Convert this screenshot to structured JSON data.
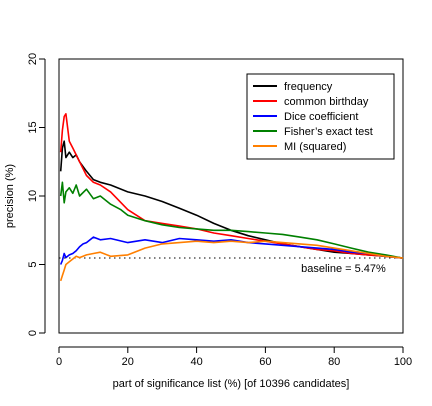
{
  "chart_data": {
    "type": "line",
    "title": "",
    "xlabel": "part of significance list (%) [of 10396 candidates]",
    "ylabel": "precision (%)",
    "xlim": [
      0,
      100
    ],
    "ylim": [
      0,
      20
    ],
    "xticks": [
      0,
      20,
      40,
      60,
      80,
      100
    ],
    "yticks": [
      0,
      5,
      10,
      15,
      20
    ],
    "grid": false,
    "legend_position": "top-right",
    "baseline": {
      "value": 5.47,
      "label": "baseline = 5.47%"
    },
    "series": [
      {
        "name": "frequency",
        "color": "#000000",
        "x": [
          0.5,
          1,
          1.5,
          2,
          3,
          4,
          5,
          6,
          8,
          10,
          12,
          15,
          20,
          25,
          30,
          35,
          40,
          45,
          50,
          55,
          60,
          65,
          70,
          75,
          80,
          85,
          90,
          95,
          100
        ],
        "y": [
          11.8,
          13.5,
          14.0,
          12.8,
          13.2,
          12.8,
          13.0,
          12.5,
          11.8,
          11.2,
          11.0,
          10.8,
          10.3,
          10.0,
          9.6,
          9.1,
          8.6,
          8.0,
          7.5,
          7.1,
          6.8,
          6.5,
          6.3,
          6.1,
          5.9,
          5.8,
          5.7,
          5.6,
          5.47
        ]
      },
      {
        "name": "common birthday",
        "color": "#ff0000",
        "x": [
          0.5,
          1,
          1.5,
          2,
          2.5,
          3,
          4,
          5,
          6,
          8,
          10,
          12,
          15,
          20,
          25,
          30,
          35,
          40,
          45,
          50,
          55,
          60,
          65,
          70,
          75,
          80,
          85,
          90,
          95,
          100
        ],
        "y": [
          13.2,
          14.8,
          15.8,
          16.0,
          15.0,
          14.0,
          13.5,
          13.0,
          12.5,
          11.5,
          11.0,
          10.8,
          10.3,
          9.0,
          8.2,
          8.0,
          7.8,
          7.6,
          7.3,
          7.1,
          6.9,
          6.7,
          6.5,
          6.3,
          6.1,
          6.0,
          5.8,
          5.7,
          5.6,
          5.47
        ]
      },
      {
        "name": "Dice coefficient",
        "color": "#0000ff",
        "x": [
          0.5,
          1,
          1.5,
          2,
          3,
          4,
          5,
          6,
          7,
          8,
          10,
          12,
          15,
          20,
          25,
          30,
          35,
          40,
          45,
          50,
          55,
          60,
          65,
          70,
          75,
          80,
          85,
          90,
          95,
          100
        ],
        "y": [
          5.0,
          5.3,
          5.8,
          5.5,
          5.7,
          5.8,
          6.0,
          6.3,
          6.5,
          6.6,
          7.0,
          6.8,
          6.9,
          6.6,
          6.8,
          6.6,
          6.9,
          6.8,
          6.7,
          6.8,
          6.6,
          6.5,
          6.4,
          6.3,
          6.2,
          6.1,
          5.9,
          5.8,
          5.6,
          5.47
        ]
      },
      {
        "name": "Fisher’s exact test",
        "color": "#008000",
        "x": [
          0.5,
          1,
          1.5,
          2,
          3,
          4,
          5,
          6,
          8,
          10,
          12,
          15,
          18,
          20,
          25,
          30,
          35,
          40,
          45,
          50,
          55,
          60,
          65,
          70,
          75,
          80,
          85,
          90,
          95,
          100
        ],
        "y": [
          10.0,
          11.0,
          9.5,
          10.3,
          10.6,
          10.2,
          10.8,
          10.0,
          10.5,
          9.8,
          10.0,
          9.4,
          9.0,
          8.6,
          8.2,
          7.9,
          7.7,
          7.6,
          7.5,
          7.5,
          7.4,
          7.3,
          7.2,
          7.0,
          6.8,
          6.5,
          6.2,
          5.9,
          5.7,
          5.47
        ]
      },
      {
        "name": "MI (squared)",
        "color": "#ff7f00",
        "x": [
          0.5,
          1,
          1.5,
          2,
          3,
          4,
          5,
          6,
          8,
          10,
          12,
          15,
          20,
          25,
          30,
          35,
          40,
          45,
          50,
          55,
          60,
          65,
          70,
          75,
          80,
          85,
          90,
          95,
          100
        ],
        "y": [
          3.8,
          4.2,
          4.6,
          5.0,
          5.2,
          5.4,
          5.6,
          5.5,
          5.7,
          5.8,
          5.9,
          5.6,
          5.7,
          6.2,
          6.5,
          6.6,
          6.7,
          6.6,
          6.7,
          6.6,
          6.7,
          6.6,
          6.5,
          6.4,
          6.2,
          6.0,
          5.8,
          5.6,
          5.47
        ]
      }
    ]
  }
}
